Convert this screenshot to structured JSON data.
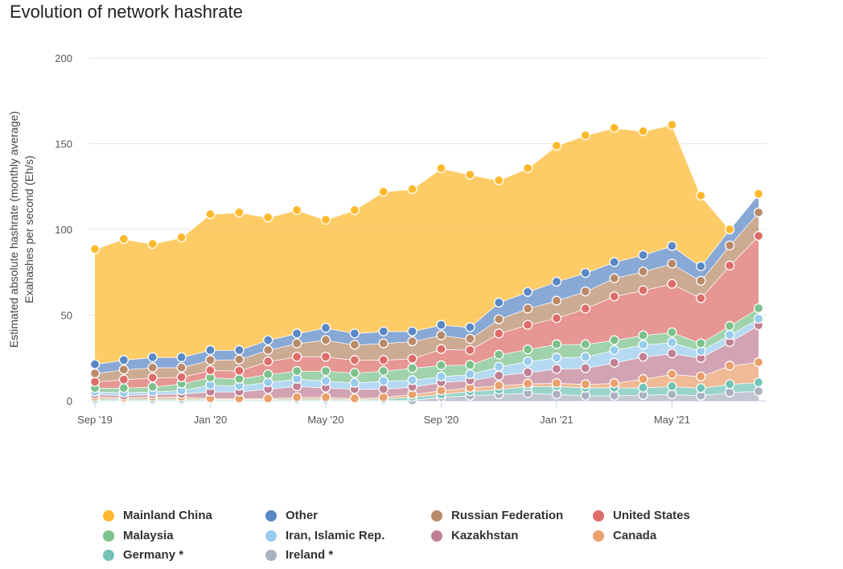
{
  "chart_data": {
    "type": "area",
    "stacked": true,
    "title": "Evolution of network hashrate",
    "ylabel_lines": [
      "Estimated absolute hashrate (monthly average)",
      "Exahashes per second (Eh/s)"
    ],
    "xlabel": "",
    "ylim": [
      0,
      200
    ],
    "yticks": [
      0,
      50,
      100,
      150,
      200
    ],
    "grid": true,
    "legend_position": "bottom",
    "x": [
      "2019-09",
      "2019-10",
      "2019-11",
      "2019-12",
      "2020-01",
      "2020-02",
      "2020-03",
      "2020-04",
      "2020-05",
      "2020-06",
      "2020-07",
      "2020-08",
      "2020-09",
      "2020-10",
      "2020-11",
      "2020-12",
      "2021-01",
      "2021-02",
      "2021-03",
      "2021-04",
      "2021-05",
      "2021-06",
      "2021-07",
      "2021-08"
    ],
    "xtick_labels": [
      {
        "index": 0,
        "label": "Sep '19"
      },
      {
        "index": 4,
        "label": "Jan '20"
      },
      {
        "index": 8,
        "label": "May '20"
      },
      {
        "index": 12,
        "label": "Sep '20"
      },
      {
        "index": 16,
        "label": "Jan '21"
      },
      {
        "index": 20,
        "label": "May '21"
      }
    ],
    "series": [
      {
        "name": "Ireland *",
        "color": "#aab2c2",
        "values": [
          0.3,
          0.3,
          0.3,
          0.3,
          0.3,
          0.3,
          0.3,
          0.3,
          0.3,
          0.3,
          0.3,
          0.3,
          2.3,
          3,
          3.8,
          4.5,
          3.8,
          3,
          3,
          3.4,
          3.8,
          3,
          5,
          5.6
        ]
      },
      {
        "name": "Germany *",
        "color": "#72c3b5",
        "values": [
          0.8,
          0.8,
          0.8,
          0.8,
          0.5,
          0.5,
          0.5,
          0.8,
          0.8,
          0.5,
          0.8,
          2,
          1.5,
          2.6,
          2.8,
          4,
          4.7,
          4.7,
          4.7,
          4.3,
          4.7,
          4.4,
          4.7,
          5.2
        ]
      },
      {
        "name": "Canada",
        "color": "#e9a06c",
        "values": [
          1.2,
          0.7,
          1.2,
          1.2,
          0.6,
          0.6,
          0.6,
          1,
          1,
          0.6,
          1,
          1.5,
          2.2,
          2.1,
          2.3,
          1.5,
          1.8,
          2,
          2.6,
          5,
          7,
          6.8,
          10.8,
          11.7
        ]
      },
      {
        "name": "Kazakhstan",
        "color": "#c08195",
        "values": [
          1.5,
          1.3,
          1.5,
          1.8,
          3.9,
          3.9,
          5.5,
          6.4,
          5.6,
          5.5,
          4.8,
          4.3,
          4.8,
          4.2,
          5.8,
          6.6,
          8.3,
          9.4,
          11.9,
          13,
          12.1,
          10.8,
          13.8,
          21.6
        ]
      },
      {
        "name": "Iran, Islamic Rep.",
        "color": "#98cbec",
        "values": [
          1.5,
          1.7,
          1.5,
          2,
          3.9,
          3.5,
          3.9,
          4.3,
          3.9,
          3.6,
          4.7,
          4,
          3.4,
          3.6,
          5.2,
          6.4,
          6.6,
          6.6,
          7.4,
          7,
          6.5,
          4.1,
          4.2,
          3.8
        ]
      },
      {
        "name": "Malaysia",
        "color": "#7cc18b",
        "values": [
          2.2,
          2.7,
          2.8,
          3.9,
          4.4,
          4,
          4.7,
          4.6,
          5.8,
          5.8,
          5.8,
          7,
          6.5,
          5.5,
          7,
          7,
          7.8,
          7.3,
          5.8,
          5.5,
          5.9,
          4.4,
          5.2,
          6.1
        ]
      },
      {
        "name": "United States",
        "color": "#dd6d6a",
        "values": [
          3.6,
          4.9,
          5.4,
          3.8,
          4.2,
          4.7,
          7.5,
          8.3,
          8.3,
          7.5,
          6.4,
          5.5,
          9.5,
          8.6,
          12.4,
          14.3,
          15.2,
          20.8,
          25.5,
          26.3,
          28.2,
          26.4,
          35.2,
          42.2
        ]
      },
      {
        "name": "Russian Federation",
        "color": "#b98a69",
        "values": [
          4.9,
          5.8,
          5.9,
          5.6,
          6,
          6.6,
          6.6,
          7.8,
          9.8,
          8.9,
          9.7,
          10.1,
          8,
          6.6,
          8.3,
          9.5,
          10.2,
          10,
          10.6,
          10.9,
          11.8,
          10.1,
          11.7,
          13.7
        ]
      },
      {
        "name": "Other",
        "color": "#5a87c5",
        "values": [
          5.3,
          5.6,
          6,
          6,
          5.8,
          5.5,
          5.8,
          5.8,
          7.1,
          6.6,
          7,
          5.8,
          6.1,
          6.7,
          9.7,
          9.7,
          11.1,
          10.8,
          9.4,
          9.6,
          10.3,
          8.5,
          9.4,
          10.8
        ]
      },
      {
        "name": "Mainland China",
        "color": "#fdb92d",
        "values": [
          67.2,
          70.6,
          66.1,
          69.9,
          79.3,
          80.3,
          71.6,
          72,
          63,
          72,
          81.5,
          83,
          91.4,
          89,
          71.3,
          72.2,
          79.3,
          80.3,
          78.3,
          72.3,
          70.7,
          41.2,
          0,
          0
        ]
      }
    ],
    "legend_order": [
      "Mainland China",
      "Other",
      "Russian Federation",
      "United States",
      "Malaysia",
      "Iran, Islamic Rep.",
      "Kazakhstan",
      "Canada",
      "Germany *",
      "Ireland *"
    ]
  }
}
